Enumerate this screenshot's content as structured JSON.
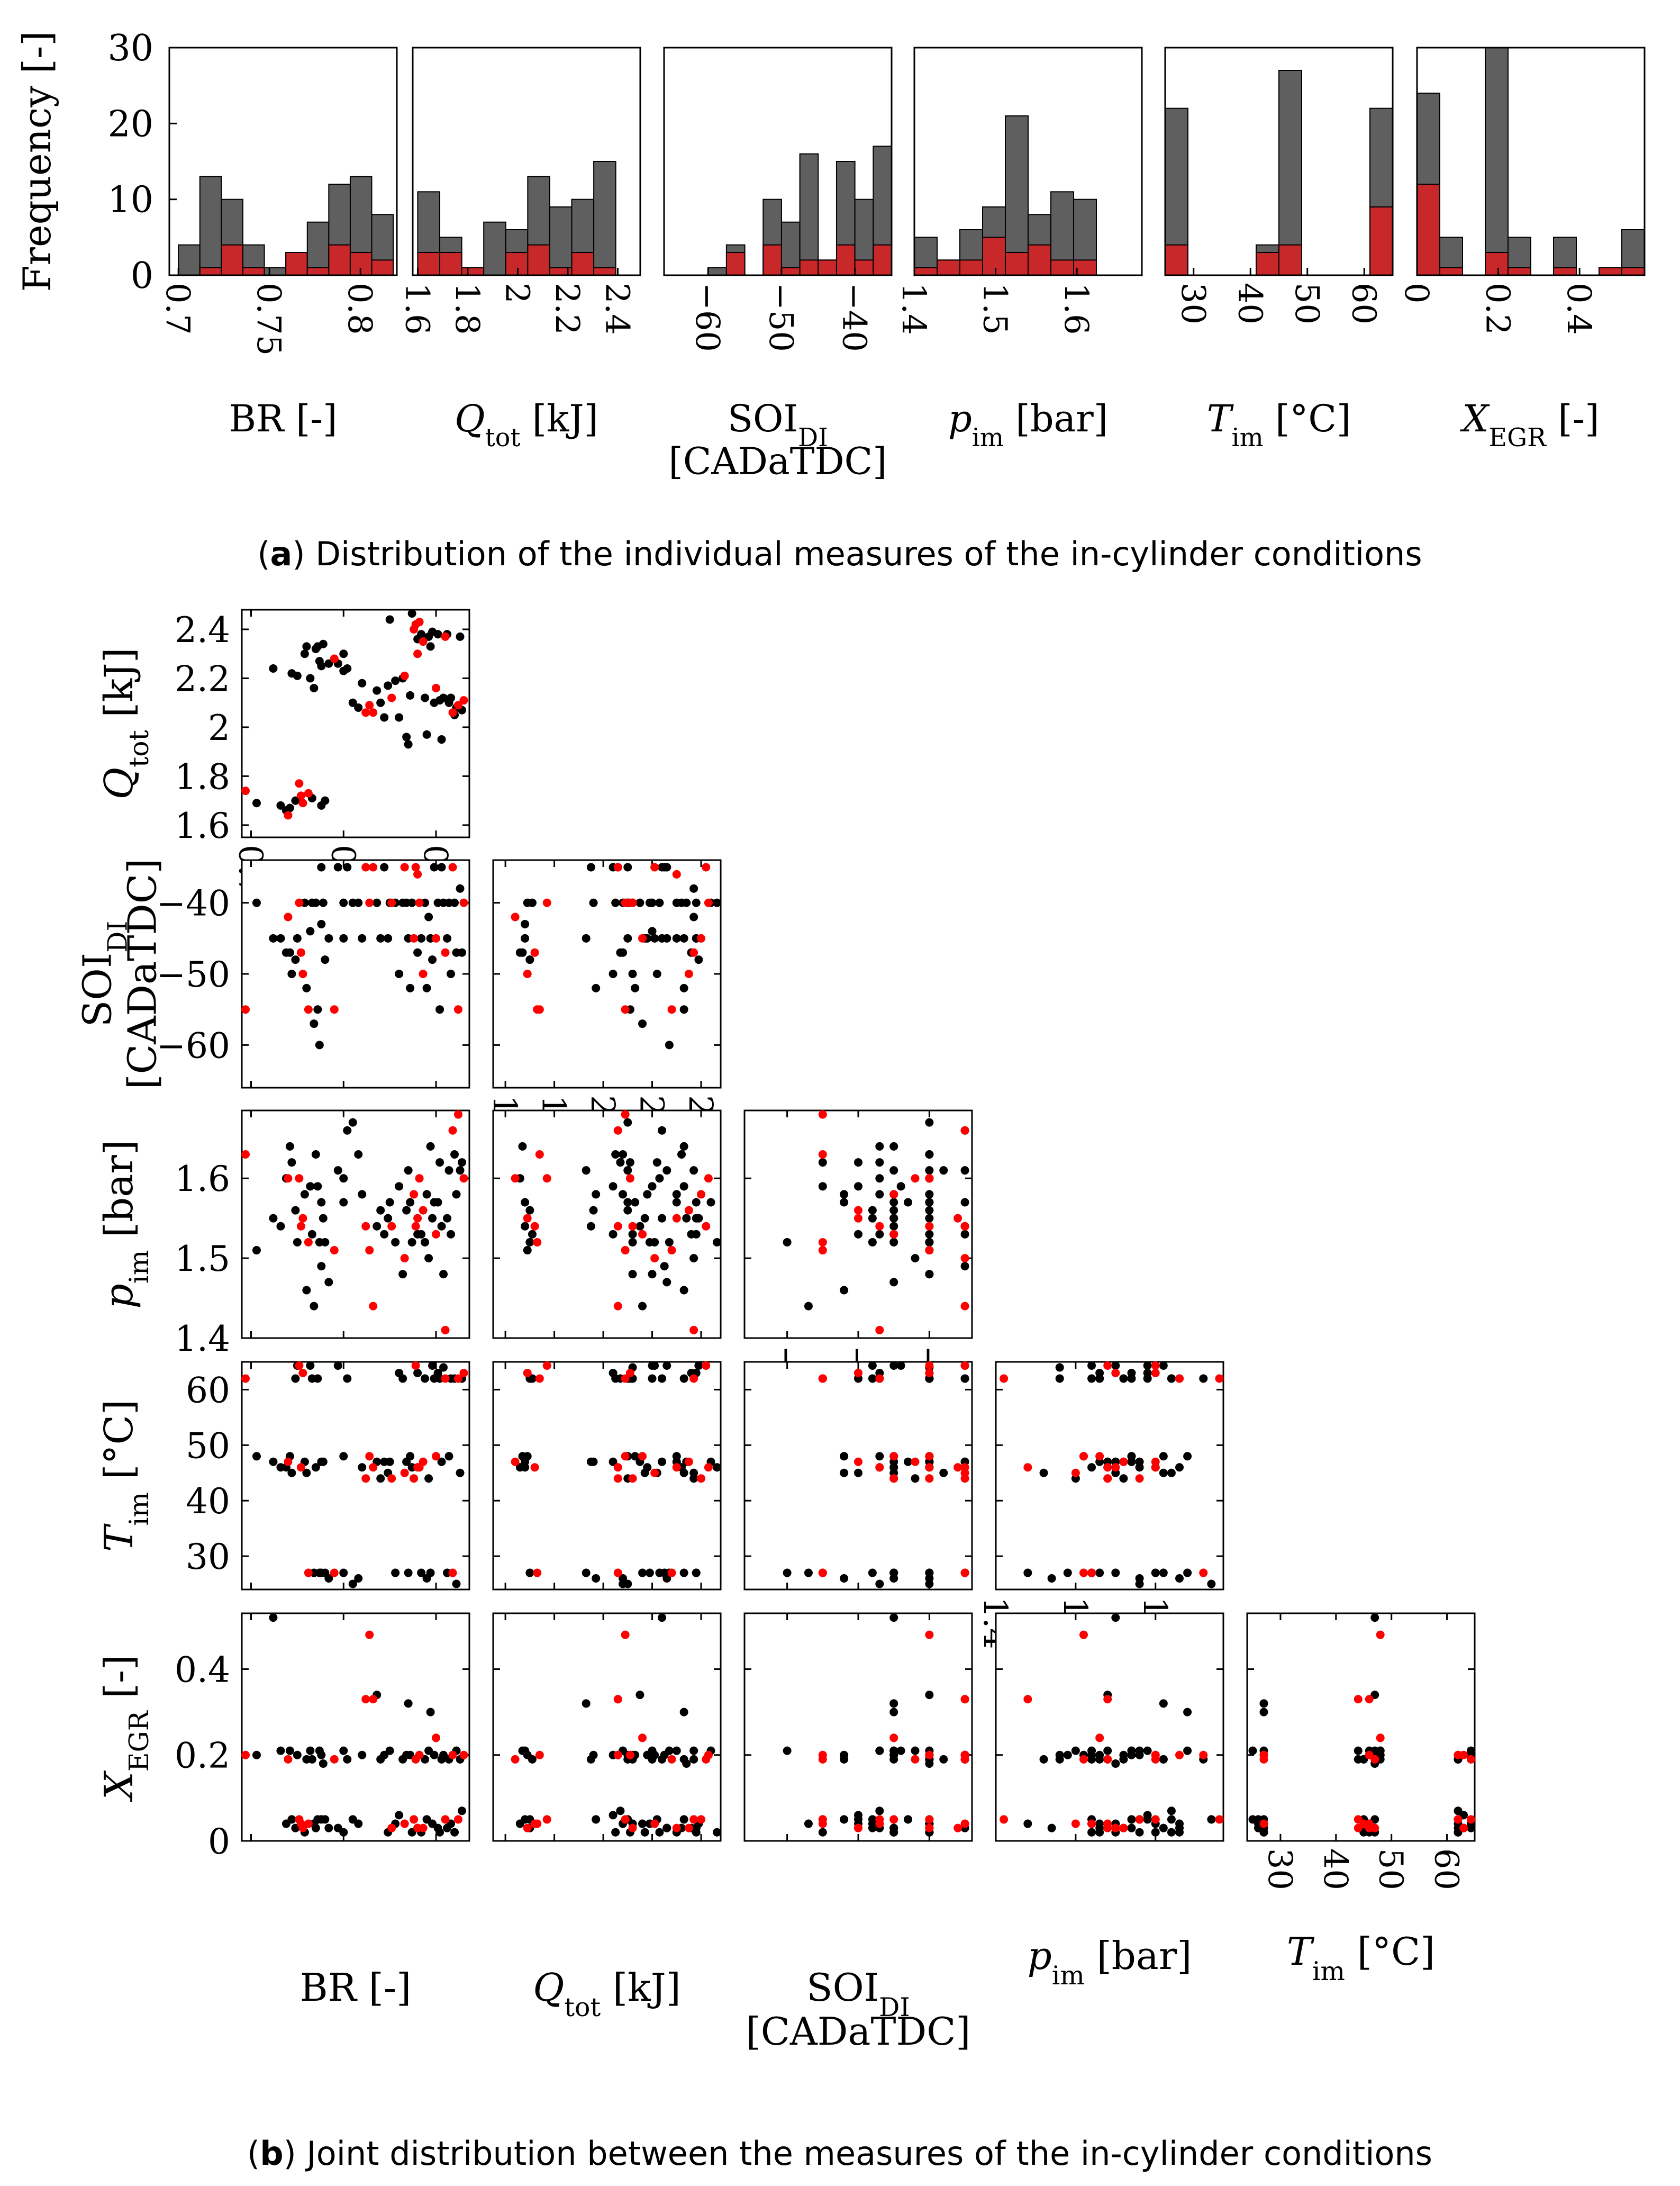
{
  "captions": {
    "a_label": "a",
    "a_text": " Distribution of the individual measures of the in-cylinder conditions",
    "b_label": "b",
    "b_text": " Joint distribution between the measures of the in-cylinder conditions"
  },
  "colors": {
    "gray": "#5f5f5f",
    "red": "#c8282a",
    "scatter_black": "#000000",
    "scatter_red": "#ff0000"
  },
  "variables": [
    {
      "id": "BR",
      "label_parts": [
        [
          "BR",
          ""
        ],
        [
          " [-]",
          ""
        ]
      ],
      "label2": ""
    },
    {
      "id": "Q",
      "label_parts": [
        [
          "Q",
          "it"
        ],
        [
          "tot",
          "sub"
        ],
        [
          " [kJ]",
          ""
        ]
      ],
      "label2": ""
    },
    {
      "id": "SOI",
      "label_parts": [
        [
          "SOI",
          ""
        ],
        [
          "DI",
          "sub"
        ]
      ],
      "label2": "[CADaTDC]"
    },
    {
      "id": "P",
      "label_parts": [
        [
          "p",
          "it"
        ],
        [
          "im",
          "sub"
        ],
        [
          " [bar]",
          ""
        ]
      ],
      "label2": ""
    },
    {
      "id": "T",
      "label_parts": [
        [
          "T",
          "it"
        ],
        [
          "im",
          "sub"
        ],
        [
          " [°C]",
          ""
        ]
      ],
      "label2": ""
    },
    {
      "id": "X",
      "label_parts": [
        [
          "X",
          "it"
        ],
        [
          "EGR",
          "sub"
        ],
        [
          " [-]",
          ""
        ]
      ],
      "label2": ""
    }
  ],
  "chart_data": [
    {
      "type": "bar",
      "subtitle": "Distribution of the individual measures of the in-cylinder conditions",
      "ylabel": "Frequency [-]",
      "ylim": [
        0,
        30
      ],
      "yticks": [
        0,
        10,
        20,
        30
      ],
      "series_names": [
        "",
        ""
      ],
      "panels": [
        {
          "var": "BR",
          "xlim": [
            0.695,
            0.82
          ],
          "xticks": [
            0.7,
            0.75,
            0.8
          ],
          "ticklabels": [
            "0.7",
            "0.75",
            "0.8"
          ],
          "bin_edges": [
            0.7,
            0.7118,
            0.7236,
            0.7354,
            0.7472,
            0.759,
            0.7708,
            0.7826,
            0.7944,
            0.8062,
            0.818
          ],
          "total": [
            4,
            13,
            10,
            4,
            1,
            3,
            7,
            12,
            13,
            8
          ],
          "red": [
            0,
            1,
            4,
            1,
            0,
            3,
            1,
            4,
            3,
            2
          ]
        },
        {
          "var": "Q",
          "xlim": [
            1.58,
            2.49
          ],
          "xticks": [
            1.6,
            1.8,
            2,
            2.2,
            2.4
          ],
          "ticklabels": [
            "1.6",
            "1.8",
            "2",
            "2.2",
            "2.4"
          ],
          "bin_edges": [
            1.6,
            1.688,
            1.776,
            1.864,
            1.952,
            2.04,
            2.128,
            2.216,
            2.304,
            2.392,
            2.48
          ],
          "total": [
            11,
            5,
            1,
            7,
            6,
            13,
            9,
            10,
            15,
            0
          ],
          "red": [
            3,
            3,
            1,
            0,
            3,
            4,
            1,
            3,
            1,
            0
          ],
          "notes": ""
        },
        {
          "var": "SOI",
          "xlim": [
            -66,
            -35
          ],
          "xticks": [
            -60,
            -50,
            -40
          ],
          "ticklabels": [
            "−60",
            "−50",
            "−40"
          ],
          "bin_edges": [
            -65,
            -62.5,
            -60,
            -57.5,
            -55,
            -52.5,
            -50,
            -47.5,
            -45,
            -42.5,
            -40,
            -37.5,
            -35
          ],
          "total": [
            0,
            0,
            1,
            4,
            0,
            10,
            7,
            16,
            2,
            15,
            10,
            17
          ],
          "red": [
            0,
            0,
            0,
            3,
            0,
            4,
            1,
            2,
            2,
            4,
            2,
            4
          ]
        },
        {
          "var": "P",
          "xlim": [
            1.4,
            1.68
          ],
          "xticks": [
            1.4,
            1.5,
            1.6
          ],
          "ticklabels": [
            "1.4",
            "1.5",
            "1.6"
          ],
          "bin_edges": [
            1.4,
            1.428,
            1.456,
            1.484,
            1.512,
            1.54,
            1.568,
            1.596,
            1.624,
            1.652,
            1.68
          ],
          "total": [
            5,
            2,
            6,
            9,
            21,
            8,
            11,
            10,
            0,
            0
          ],
          "red": [
            1,
            2,
            2,
            5,
            3,
            4,
            2,
            2,
            0,
            0
          ]
        },
        {
          "var": "T",
          "xlim": [
            25,
            65
          ],
          "xticks": [
            30,
            40,
            50,
            60
          ],
          "ticklabels": [
            "30",
            "40",
            "50",
            "60"
          ],
          "bin_edges": [
            25,
            29,
            33,
            37,
            41,
            45,
            49,
            53,
            57,
            61,
            65
          ],
          "total": [
            22,
            0,
            0,
            0,
            4,
            27,
            0,
            0,
            0,
            22
          ],
          "red": [
            4,
            0,
            0,
            0,
            3,
            4,
            0,
            0,
            0,
            9
          ]
        },
        {
          "var": "X",
          "xlim": [
            0,
            0.56
          ],
          "xticks": [
            0,
            0.2,
            0.4
          ],
          "ticklabels": [
            "0",
            "0.2",
            "0.4"
          ],
          "bin_edges": [
            0,
            0.056,
            0.112,
            0.168,
            0.224,
            0.28,
            0.336,
            0.392,
            0.448,
            0.504,
            0.56
          ],
          "total": [
            24,
            5,
            0,
            30,
            5,
            0,
            5,
            0,
            1,
            6
          ],
          "red": [
            12,
            1,
            0,
            3,
            1,
            0,
            1,
            0,
            1,
            1
          ]
        }
      ]
    },
    {
      "type": "scatter",
      "subtitle": "Joint distribution between the measures of the in-cylinder conditions",
      "axes": {
        "BR": {
          "lim": [
            0.695,
            0.818
          ],
          "ticks": [
            0.7,
            0.75,
            0.8
          ],
          "labels": [
            "0.7",
            "0.75",
            "0.8"
          ]
        },
        "Q": {
          "lim": [
            1.55,
            2.48
          ],
          "ticks": [
            1.6,
            1.8,
            2,
            2.2,
            2.4
          ],
          "labels": [
            "1.6",
            "1.8",
            "2",
            "2.2",
            "2.4"
          ]
        },
        "SOI": {
          "lim": [
            -66,
            -34
          ],
          "ticks": [
            -60,
            -50,
            -40
          ],
          "labels": [
            "−60",
            "−50",
            "−40"
          ]
        },
        "P": {
          "lim": [
            1.4,
            1.685
          ],
          "ticks": [
            1.4,
            1.5,
            1.6
          ],
          "labels": [
            "1.4",
            "1.5",
            "1.6"
          ]
        },
        "T": {
          "lim": [
            24,
            65
          ],
          "ticks": [
            30,
            40,
            50,
            60
          ],
          "labels": [
            "30",
            "40",
            "50",
            "60"
          ]
        },
        "X": {
          "lim": [
            0,
            0.53
          ],
          "ticks": [
            0,
            0.2,
            0.4
          ],
          "labels": [
            "0",
            "0.2",
            "0.4"
          ]
        }
      },
      "points": [
        [
          0.697,
          1.74,
          -55,
          1.63,
          62,
          0.2,
          1
        ],
        [
          0.703,
          1.69,
          -40,
          1.51,
          48,
          0.2,
          0
        ],
        [
          0.712,
          2.24,
          -45,
          1.55,
          47,
          0.52,
          0
        ],
        [
          0.716,
          1.68,
          -45,
          1.54,
          46,
          0.21,
          0
        ],
        [
          0.719,
          1.66,
          -47,
          1.6,
          46,
          0.04,
          0
        ],
        [
          0.721,
          1.67,
          -47,
          1.64,
          48,
          0.21,
          0
        ],
        [
          0.722,
          2.22,
          -50,
          1.62,
          45,
          0.05,
          0
        ],
        [
          0.724,
          1.7,
          -48,
          1.56,
          62,
          0.03,
          0
        ],
        [
          0.725,
          2.21,
          -45,
          1.52,
          65,
          0.2,
          0
        ],
        [
          0.726,
          1.77,
          -40,
          1.6,
          65,
          0.05,
          1
        ],
        [
          0.727,
          1.72,
          -47,
          1.54,
          46,
          0.04,
          1
        ],
        [
          0.728,
          1.69,
          -50,
          1.55,
          63,
          0.03,
          1
        ],
        [
          0.729,
          2.3,
          -40,
          1.58,
          47,
          0.02,
          0
        ],
        [
          0.73,
          2.33,
          -52,
          1.46,
          45,
          0.19,
          0
        ],
        [
          0.731,
          1.73,
          -55,
          1.52,
          27,
          0.04,
          1
        ],
        [
          0.732,
          2.2,
          -44,
          1.59,
          65,
          0.21,
          0
        ],
        [
          0.733,
          1.71,
          -40,
          1.53,
          62,
          0.19,
          0
        ],
        [
          0.734,
          2.16,
          -57,
          1.44,
          27,
          0.04,
          0
        ],
        [
          0.735,
          2.32,
          -40,
          1.63,
          46,
          0.03,
          0
        ],
        [
          0.736,
          2.33,
          -55,
          1.59,
          62,
          0.05,
          0
        ],
        [
          0.737,
          2.27,
          -60,
          1.52,
          27,
          0.21,
          0
        ],
        [
          0.738,
          2.25,
          -35,
          1.49,
          27,
          0.2,
          0
        ],
        [
          0.739,
          2.34,
          -40,
          1.55,
          47,
          0.18,
          0
        ],
        [
          0.74,
          1.7,
          -48,
          1.52,
          27,
          0.05,
          0
        ],
        [
          0.742,
          2.26,
          -45,
          1.47,
          26,
          0.03,
          0
        ],
        [
          0.745,
          2.28,
          -55,
          1.51,
          27,
          0.19,
          1
        ],
        [
          0.747,
          2.26,
          -35,
          1.61,
          65,
          0.03,
          0
        ],
        [
          0.75,
          2.23,
          -40,
          1.6,
          27,
          0.02,
          0
        ],
        [
          0.752,
          2.24,
          -35,
          1.66,
          62,
          0.19,
          0
        ],
        [
          0.755,
          2.1,
          -40,
          1.67,
          25,
          0.05,
          0
        ],
        [
          0.758,
          2.08,
          -40,
          1.63,
          26,
          0.04,
          0
        ],
        [
          0.762,
          2.06,
          -35,
          1.54,
          44,
          0.33,
          1
        ],
        [
          0.764,
          2.09,
          -40,
          1.51,
          48,
          0.48,
          1
        ],
        [
          0.766,
          2.06,
          -35,
          1.44,
          46,
          0.33,
          1
        ],
        [
          0.768,
          2.15,
          -40,
          1.54,
          47,
          0.34,
          0
        ],
        [
          0.77,
          2.1,
          -45,
          1.56,
          44,
          0.19,
          0
        ],
        [
          0.772,
          2.04,
          -35,
          1.53,
          47,
          0.2,
          0
        ],
        [
          0.774,
          2.17,
          -45,
          1.55,
          45,
          0.02,
          0
        ],
        [
          0.776,
          2.12,
          -40,
          1.54,
          44,
          0.03,
          1
        ],
        [
          0.778,
          2.19,
          -40,
          1.52,
          27,
          0.04,
          0
        ],
        [
          0.78,
          2.04,
          -50,
          1.59,
          63,
          0.06,
          0
        ],
        [
          0.782,
          2.2,
          -40,
          1.48,
          62,
          0.19,
          0
        ],
        [
          0.783,
          2.21,
          -35,
          1.5,
          45,
          0.04,
          1
        ],
        [
          0.784,
          1.96,
          -40,
          1.56,
          47,
          0.2,
          0
        ],
        [
          0.785,
          1.93,
          -45,
          1.61,
          27,
          0.32,
          0
        ],
        [
          0.786,
          2.13,
          -52,
          1.57,
          48,
          0.2,
          0
        ],
        [
          0.787,
          2.47,
          -40,
          1.52,
          46,
          0.02,
          0
        ],
        [
          0.788,
          2.4,
          -45,
          1.58,
          44,
          0.05,
          1
        ],
        [
          0.789,
          2.42,
          -35,
          1.54,
          65,
          0.19,
          1
        ],
        [
          0.79,
          2.36,
          -47,
          1.53,
          63,
          0.03,
          0
        ],
        [
          0.791,
          2.43,
          -40,
          1.6,
          46,
          0.2,
          1
        ],
        [
          0.792,
          2.38,
          -45,
          1.53,
          27,
          0.02,
          0
        ],
        [
          0.793,
          2.35,
          -50,
          1.56,
          47,
          0.03,
          1
        ],
        [
          0.794,
          2.12,
          -40,
          1.52,
          62,
          0.19,
          0
        ],
        [
          0.795,
          1.97,
          -52,
          1.58,
          26,
          0.05,
          0
        ],
        [
          0.796,
          2.37,
          -42,
          1.5,
          44,
          0.21,
          0
        ],
        [
          0.797,
          2.33,
          -45,
          1.64,
          27,
          0.3,
          0
        ],
        [
          0.798,
          2.39,
          -48,
          1.55,
          65,
          0.04,
          0
        ],
        [
          0.799,
          2.1,
          -35,
          1.57,
          62,
          0.2,
          0
        ],
        [
          0.8,
          2.16,
          -45,
          1.53,
          48,
          0.24,
          1
        ],
        [
          0.801,
          2.38,
          -40,
          1.57,
          63,
          0.03,
          0
        ],
        [
          0.802,
          2.11,
          -55,
          1.62,
          62,
          0.02,
          0
        ],
        [
          0.803,
          1.95,
          -35,
          1.54,
          47,
          0.19,
          0
        ],
        [
          0.804,
          2.12,
          -40,
          1.48,
          64,
          0.2,
          0
        ],
        [
          0.805,
          2.37,
          -47,
          1.41,
          62,
          0.05,
          1
        ],
        [
          0.806,
          2.38,
          -45,
          1.55,
          27,
          0.03,
          0
        ],
        [
          0.807,
          2.1,
          -40,
          1.61,
          48,
          0.19,
          0
        ],
        [
          0.808,
          2.12,
          -50,
          1.53,
          62,
          0.04,
          0
        ],
        [
          0.809,
          2.06,
          -35,
          1.66,
          27,
          0.2,
          1
        ],
        [
          0.81,
          2.05,
          -40,
          1.63,
          62,
          0.02,
          0
        ],
        [
          0.811,
          2.08,
          -47,
          1.58,
          25,
          0.21,
          0
        ],
        [
          0.812,
          2.09,
          -55,
          1.68,
          62,
          0.05,
          1
        ],
        [
          0.813,
          2.37,
          -38,
          1.61,
          45,
          0.19,
          0
        ],
        [
          0.814,
          2.07,
          -47,
          1.62,
          62,
          0.07,
          0
        ],
        [
          0.815,
          2.11,
          -40,
          1.6,
          63,
          0.2,
          1
        ],
        [
          0.75,
          2.3,
          -45,
          1.57,
          48,
          0.21,
          0
        ],
        [
          0.76,
          2.18,
          -45,
          1.58,
          46,
          0.2,
          0
        ],
        [
          0.775,
          2.44,
          -40,
          1.57,
          47,
          0.21,
          0
        ],
        [
          0.72,
          1.64,
          -42,
          1.6,
          47,
          0.19,
          1
        ],
        [
          0.738,
          1.68,
          -43,
          1.57,
          47,
          0.05,
          0
        ],
        [
          0.79,
          2.3,
          -36,
          1.55,
          46,
          0.03,
          1
        ]
      ]
    }
  ]
}
